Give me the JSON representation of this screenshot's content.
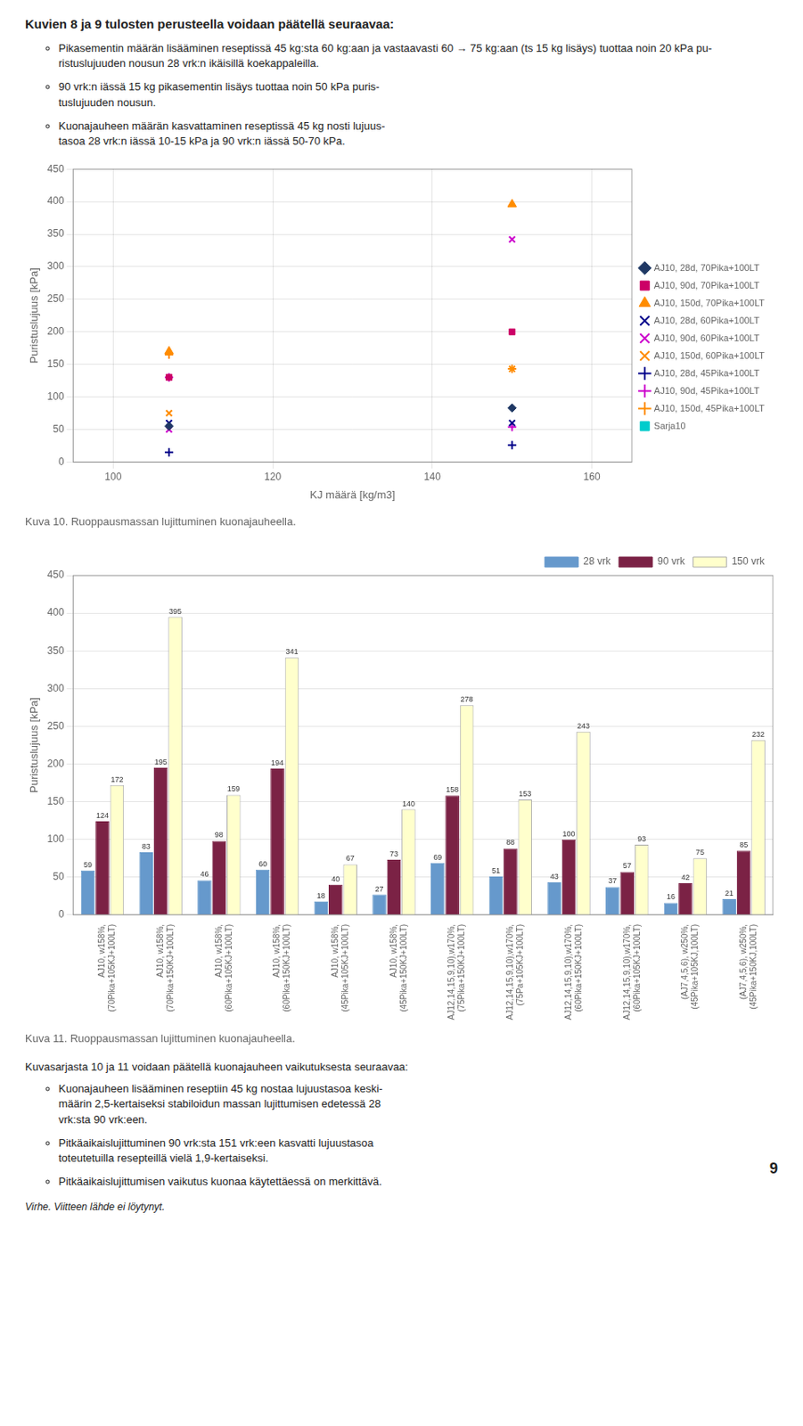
{
  "title": "Kuvien 8 ja 9 tulosten perusteella voidaan päätellä seuraavaa:",
  "bullets": [
    "Pikasementin määrän lisääminen reseptissä 45 kg:sta 60 kg:aan ja vastaavasti 60 → 75 kg:aan (ts 15 kg lisäys) tuottaa noin 20 kPa pu-\nristuslujuuden nousun 28 vrk:n ikäisillä koekappaleilla.",
    "90 vrk:n iässä 15 kg pikasementin lisäys tuottaa noin 50 kPa puris-\ntuslujuuden nousun.",
    "Kuonajauheen määrän kasvattaminen reseptissä 45 kg nosti lujuus-\ntasoa 28 vrk:n iässä 10-15 kPa ja 90 vrk:n iässä 50-70 kPa."
  ],
  "chart_data": [
    {
      "type": "scatter",
      "title": "Kuva 10. Ruoppausmassan lujittuminen kuonajauheella.",
      "xlabel": "KJ määrä [kg/m3]",
      "ylabel": "Puristuslujuus [kPa]",
      "xlim": [
        95,
        165
      ],
      "xticks": [
        100,
        120,
        140,
        160
      ],
      "ylim": [
        0,
        450
      ],
      "yticks": [
        0,
        50,
        100,
        150,
        200,
        250,
        300,
        350,
        400,
        450
      ],
      "grid": true,
      "legend": "right",
      "series": [
        {
          "name": "AJ10, 28d, 70Pika+100LT",
          "color": "#1F3864",
          "marker": "diamond",
          "x": [
            107,
            150
          ],
          "values": [
            55,
            83
          ]
        },
        {
          "name": "AJ10, 90d, 70Pika+100LT",
          "color": "#CC0066",
          "marker": "square",
          "x": [
            107,
            150
          ],
          "values": [
            130,
            200
          ]
        },
        {
          "name": "AJ10, 150d, 70Pika+100LT",
          "color": "#FF8C00",
          "marker": "triangle",
          "x": [
            107,
            150
          ],
          "values": [
            170,
            396
          ]
        },
        {
          "name": "AJ10, 28d, 60Pika+100LT",
          "color": "#00008B",
          "marker": "x",
          "x": [
            107,
            150
          ],
          "values": [
            60,
            60
          ]
        },
        {
          "name": "AJ10, 90d, 60Pika+100LT",
          "color": "#CC00CC",
          "marker": "x",
          "x": [
            107,
            150
          ],
          "values": [
            50,
            342
          ]
        },
        {
          "name": "AJ10, 150d, 60Pika+100LT",
          "color": "#FF8C00",
          "marker": "x",
          "x": [
            107,
            150
          ],
          "values": [
            75,
            143
          ]
        },
        {
          "name": "AJ10, 28d, 45Pika+100LT",
          "color": "#00008B",
          "marker": "plus",
          "x": [
            107,
            150
          ],
          "values": [
            15,
            26
          ]
        },
        {
          "name": "AJ10, 90d, 45Pika+100LT",
          "color": "#CC00CC",
          "marker": "plus",
          "x": [
            107,
            150
          ],
          "values": [
            130,
            54
          ]
        },
        {
          "name": "AJ10, 150d, 45Pika+100LT",
          "color": "#FF8C00",
          "marker": "plus",
          "x": [
            107,
            150
          ],
          "values": [
            165,
            143
          ]
        },
        {
          "name": "Sarja10",
          "color": "#00CCCC",
          "marker": "square",
          "x": [],
          "values": []
        }
      ]
    },
    {
      "type": "bar",
      "title": "Kuva 11. Ruoppausmassan lujittuminen kuonajauheella.",
      "ylabel": "Puristuslujuus [kPa]",
      "categories": [
        "AJ10, w158%,\n(70Pika+105KJ+100LT)",
        "AJ10, w158%,\n(70Pika+150KJ+100LT)",
        "AJ10, w158%,\n(60Pika+105KJ+100LT)",
        "AJ10, w158%,\n(60Pika+150KJ+100LT)",
        "AJ10, w158%,\n(45Pika+105KJ+100LT)",
        "AJ10, w158%,\n(45Pika+150KJ+100LT)",
        "AJ12,14,15,9,10),w170%,\n(75Pika+150KJ+100LT)",
        "AJ12,14,15,9,10),w170%,\n(75Pa+105KJ+100LT)",
        "AJ12,14,15,9,10),w170%,\n(60Pika+150KJ+100LT)",
        "AJ12,14,15,9,10),w170%,\n(60Pika+105KJ+100LT)",
        "(AJ7,4,5,6), w250%,\n(45Pika+105KJ,100LT)",
        "(AJ7,4,5,6), w250%,\n(45Pika+150KJ,100LT)"
      ],
      "series": [
        {
          "name": "28 vrk",
          "color": "#6699CC",
          "values": [
            59,
            83,
            46,
            60,
            18,
            27,
            69,
            51,
            43,
            37,
            16,
            21
          ]
        },
        {
          "name": "90 vrk",
          "color": "#7B2245",
          "values": [
            124,
            195,
            98,
            194,
            40,
            73,
            158,
            88,
            100,
            57,
            42,
            85
          ]
        },
        {
          "name": "150 vrk",
          "color": "#FFFFCC",
          "values": [
            172,
            395,
            159,
            341,
            67,
            140,
            278,
            153,
            243,
            93,
            75,
            232
          ]
        }
      ],
      "ylim": [
        0,
        450
      ],
      "yticks": [
        0,
        50,
        100,
        150,
        200,
        250,
        300,
        350,
        400,
        450
      ],
      "grid": "y",
      "legend": "upper right",
      "data_labels": true
    }
  ],
  "intro": "Kuvasarjasta 10 ja 11 voidaan päätellä kuonajauheen vaikutuksesta seuraavaa:",
  "bottom_bullets": [
    "Kuonajauheen lisääminen reseptiin 45 kg nostaa lujuustasoa keski-\nmäärin 2,5-kertaiseksi stabiloidun massan lujittumisen edetessä 28\nvrk:sta 90 vrk:een.",
    "Pitkäaikaislujittuminen 90 vrk:sta 151 vrk:een kasvatti lujuustasoa\ntoteutetuilla resepteillä vielä 1,9-kertaiseksi.",
    "Pitkäaikaislujittumisen vaikutus kuonaa käytettäessä on merkittävä."
  ],
  "page_number": "9",
  "footer": "Virhe. Viitteen lähde ei löytynyt."
}
